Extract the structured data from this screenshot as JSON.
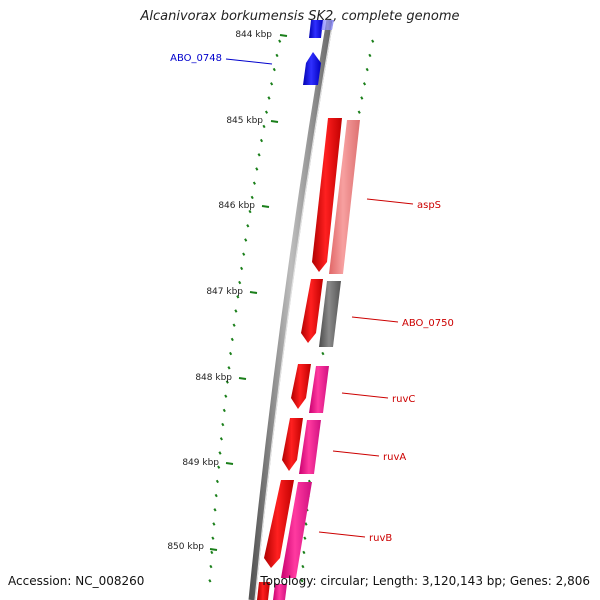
{
  "title": "Alcanivorax borkumensis SK2, complete genome",
  "accession": "Accession: NC_008260",
  "topology": "Topology: circular; Length: 3,120,143 bp; Genes: 2,806",
  "colors": {
    "background": "#ffffff",
    "backbone": "#808080",
    "tick": "#1a7f1a",
    "cds_red": "#ee0000",
    "cds_pink_light": "#f08080",
    "cds_magenta": "#ff1493",
    "cds_gray": "#707070",
    "cds_blue": "#0000ee",
    "label_red": "#cc0000",
    "label_blue": "#0000cc"
  },
  "axis": {
    "unit": "kbp",
    "major_ticks": [
      "844 kbp",
      "845 kbp",
      "846 kbp",
      "847 kbp",
      "848 kbp",
      "849 kbp",
      "850 kbp"
    ]
  },
  "genes": [
    {
      "name": "ABO_0748",
      "strand": "+",
      "color": "blue"
    },
    {
      "name": "aspS",
      "strand": "-",
      "color": "red"
    },
    {
      "name": "ABO_0750",
      "strand": "-",
      "color": "red"
    },
    {
      "name": "ruvC",
      "strand": "-",
      "color": "red"
    },
    {
      "name": "ruvA",
      "strand": "-",
      "color": "red"
    },
    {
      "name": "ruvB",
      "strand": "-",
      "color": "red"
    }
  ]
}
